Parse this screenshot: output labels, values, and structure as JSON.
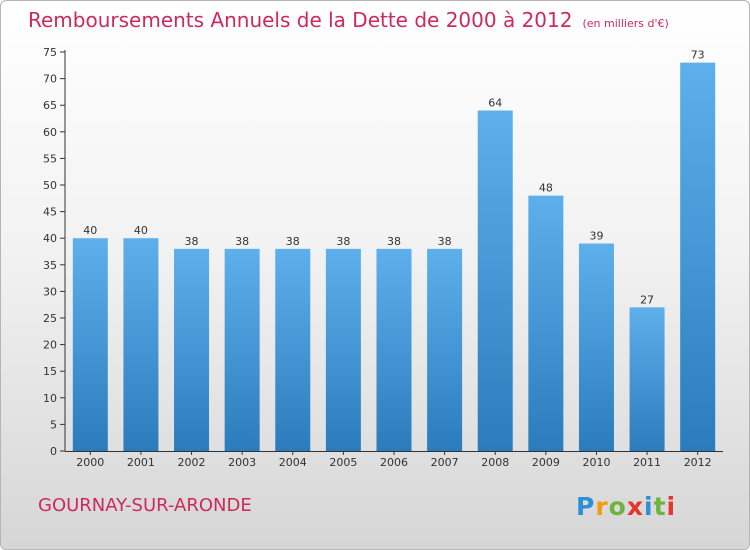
{
  "title": "Remboursements Annuels de la Dette de 2000 à 2012",
  "unit": "(en milliers d'€)",
  "commune": "GOURNAY-SUR-ARONDE",
  "logo": {
    "letters": [
      "P",
      "r",
      "o",
      "x",
      "i",
      "t",
      "i"
    ],
    "colors": [
      "#2d8fd5",
      "#f39c12",
      "#6cb33f",
      "#e8342e",
      "#2d8fd5",
      "#6cb33f",
      "#e8342e"
    ]
  },
  "colors": {
    "title": "#cc2a5e",
    "bar_top": "#5eb0ec",
    "bar_bottom": "#2a7cbc"
  },
  "chart_data": {
    "type": "bar",
    "categories": [
      "2000",
      "2001",
      "2002",
      "2003",
      "2004",
      "2005",
      "2006",
      "2007",
      "2008",
      "2009",
      "2010",
      "2011",
      "2012"
    ],
    "values": [
      40,
      40,
      38,
      38,
      38,
      38,
      38,
      38,
      64,
      48,
      39,
      27,
      73
    ],
    "ylim": [
      0,
      75
    ],
    "yticks": [
      0,
      5,
      10,
      15,
      20,
      25,
      30,
      35,
      40,
      45,
      50,
      55,
      60,
      65,
      70,
      75
    ],
    "grid": false,
    "data_labels": true
  }
}
